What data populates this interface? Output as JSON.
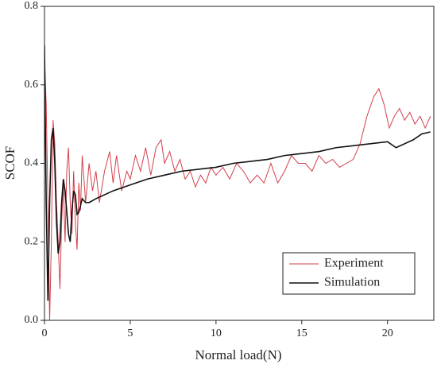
{
  "chart_data": {
    "type": "line",
    "xlabel": "Normal load(N)",
    "ylabel": "SCOF",
    "xlim": [
      0,
      22.7
    ],
    "ylim": [
      0,
      0.8
    ],
    "xticks": [
      0,
      5,
      10,
      15,
      20
    ],
    "yticks": [
      {
        "value": 0,
        "label": "0.0"
      },
      0.2,
      0.4,
      0.6,
      0.8
    ],
    "legend": "lower right",
    "series": [
      {
        "name": "Experiment",
        "color": "#d43f4c",
        "x": [
          0,
          0.1,
          0.2,
          0.3,
          0.4,
          0.5,
          0.6,
          0.7,
          0.8,
          0.9,
          1.0,
          1.1,
          1.2,
          1.3,
          1.4,
          1.5,
          1.6,
          1.7,
          1.8,
          1.9,
          2.0,
          2.1,
          2.2,
          2.4,
          2.6,
          2.8,
          3.0,
          3.2,
          3.5,
          3.8,
          4.0,
          4.2,
          4.5,
          4.8,
          5.0,
          5.3,
          5.6,
          5.9,
          6.2,
          6.5,
          6.8,
          7.0,
          7.3,
          7.6,
          7.9,
          8.2,
          8.5,
          8.8,
          9.1,
          9.4,
          9.7,
          10.0,
          10.4,
          10.8,
          11.2,
          11.6,
          12.0,
          12.4,
          12.8,
          13.2,
          13.6,
          14.0,
          14.4,
          14.8,
          15.2,
          15.6,
          16.0,
          16.4,
          16.8,
          17.2,
          17.6,
          18.0,
          18.4,
          18.8,
          19.2,
          19.5,
          19.8,
          20.1,
          20.4,
          20.7,
          21.0,
          21.3,
          21.6,
          21.9,
          22.2,
          22.5
        ],
        "values": [
          0.67,
          0.55,
          0.3,
          0.0,
          0.2,
          0.51,
          0.45,
          0.3,
          0.2,
          0.08,
          0.25,
          0.35,
          0.2,
          0.38,
          0.44,
          0.3,
          0.22,
          0.38,
          0.25,
          0.18,
          0.35,
          0.28,
          0.42,
          0.3,
          0.4,
          0.33,
          0.38,
          0.3,
          0.38,
          0.43,
          0.35,
          0.42,
          0.33,
          0.38,
          0.36,
          0.42,
          0.38,
          0.44,
          0.37,
          0.44,
          0.46,
          0.4,
          0.43,
          0.38,
          0.41,
          0.36,
          0.38,
          0.34,
          0.37,
          0.35,
          0.39,
          0.37,
          0.39,
          0.36,
          0.4,
          0.38,
          0.35,
          0.37,
          0.35,
          0.4,
          0.35,
          0.38,
          0.42,
          0.4,
          0.4,
          0.38,
          0.42,
          0.4,
          0.41,
          0.39,
          0.4,
          0.41,
          0.45,
          0.52,
          0.57,
          0.59,
          0.55,
          0.49,
          0.52,
          0.54,
          0.51,
          0.53,
          0.5,
          0.52,
          0.49,
          0.52
        ]
      },
      {
        "name": "Simulation",
        "color": "#111111",
        "x": [
          0,
          0.1,
          0.2,
          0.3,
          0.4,
          0.5,
          0.6,
          0.7,
          0.8,
          0.9,
          1.0,
          1.1,
          1.2,
          1.4,
          1.5,
          1.6,
          1.7,
          1.8,
          1.9,
          2.0,
          2.2,
          2.4,
          2.6,
          3,
          4,
          5,
          6,
          7,
          8,
          9,
          10,
          11,
          12,
          13,
          14,
          15,
          16,
          17,
          18,
          19,
          20,
          20.5,
          21,
          21.5,
          22,
          22.5
        ],
        "values": [
          0.7,
          0.3,
          0.05,
          0.3,
          0.46,
          0.49,
          0.4,
          0.25,
          0.17,
          0.2,
          0.3,
          0.36,
          0.33,
          0.22,
          0.2,
          0.28,
          0.33,
          0.32,
          0.27,
          0.275,
          0.31,
          0.3,
          0.3,
          0.31,
          0.33,
          0.345,
          0.36,
          0.37,
          0.38,
          0.385,
          0.39,
          0.4,
          0.405,
          0.41,
          0.42,
          0.425,
          0.43,
          0.44,
          0.445,
          0.45,
          0.455,
          0.44,
          0.45,
          0.46,
          0.475,
          0.48
        ]
      }
    ]
  }
}
